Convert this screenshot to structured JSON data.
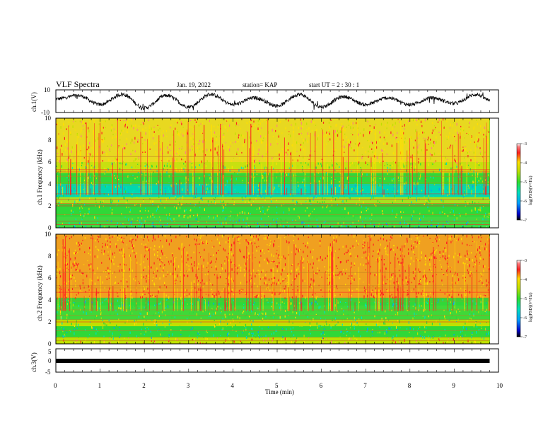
{
  "header": {
    "title": "VLF Spectra",
    "date": "Jan. 19, 2022",
    "station": "station= KAP",
    "start": "start  UT  =   2  : 30 : 1"
  },
  "chart_data": [
    {
      "type": "line",
      "panel": "ch1-waveform",
      "ylabel": "ch.1(V)",
      "ylim": [
        -10,
        10
      ],
      "yticks": [
        "10",
        "-10"
      ],
      "xlim": [
        0,
        10
      ],
      "description_values": {
        "x_min": [
          0,
          0.5,
          1.0,
          1.5,
          2.0,
          2.5,
          3.0,
          3.5,
          4.0,
          4.5,
          5.0,
          5.5,
          6.0,
          6.5,
          7.0,
          7.5,
          8.0,
          8.5,
          9.0,
          9.5,
          9.8
        ],
        "y_volts": [
          2,
          5,
          -3,
          6,
          -6,
          5,
          -5,
          6,
          -3,
          3,
          -4,
          6,
          -5,
          4,
          -3,
          3,
          -3,
          3,
          -2,
          6,
          1
        ]
      }
    },
    {
      "type": "heatmap",
      "panel": "ch1-spectrogram",
      "ylabel": "ch.1 Frequency (kHz)",
      "ylim": [
        0,
        10
      ],
      "yticks": [
        "0",
        "2",
        "4",
        "6",
        "8",
        "10"
      ],
      "xlim": [
        0,
        10
      ],
      "colorbar": {
        "label": "log(PSD)(V²/Hz)",
        "range": [
          -7,
          -3
        ],
        "ticks": [
          "-3",
          "-4",
          "-5",
          "-6",
          "-7"
        ]
      }
    },
    {
      "type": "heatmap",
      "panel": "ch2-spectrogram",
      "ylabel": "ch.2 Frequency (kHz)",
      "ylim": [
        0,
        10
      ],
      "yticks": [
        "0",
        "2",
        "4",
        "6",
        "8",
        "10"
      ],
      "xlim": [
        0,
        10
      ],
      "colorbar": {
        "label": "log(PSD)(V²/Hz)",
        "range": [
          -7,
          -3
        ],
        "ticks": [
          "-3",
          "-4",
          "-5",
          "-6",
          "-7"
        ]
      }
    },
    {
      "type": "line",
      "panel": "ch3-waveform",
      "ylabel": "ch.3(V)",
      "ylim": [
        -5,
        5
      ],
      "yticks": [
        "5",
        "0",
        "-5"
      ],
      "xlim": [
        0,
        10
      ],
      "xlabel": "Time  (min)",
      "xticks": [
        "0",
        "1",
        "2",
        "3",
        "4",
        "5",
        "6",
        "7",
        "8",
        "9",
        "10"
      ],
      "y_volts_constant": 0
    }
  ]
}
